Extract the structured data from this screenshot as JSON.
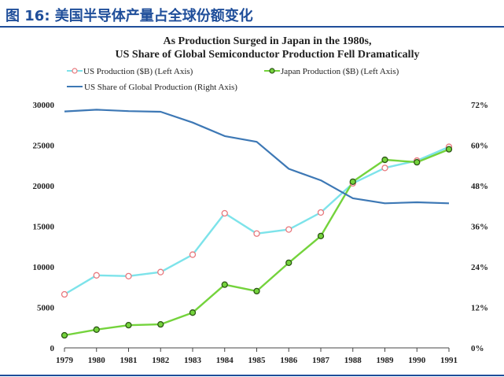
{
  "figure": {
    "title": "图 16:  美国半导体产量占全球份额变化"
  },
  "chart_data": {
    "type": "line",
    "title": "As Production Surged in Japan in the 1980s,",
    "subtitle": "US Share of Global Semiconductor Production Fell Dramatically",
    "x": [
      "1979",
      "1980",
      "1981",
      "1982",
      "1983",
      "1984",
      "1985",
      "1986",
      "1987",
      "1988",
      "1989",
      "1990",
      "1991"
    ],
    "left_axis": {
      "ylim": [
        0,
        30000
      ],
      "ticks": [
        "0",
        "5000",
        "10000",
        "15000",
        "20000",
        "25000",
        "30000"
      ]
    },
    "right_axis": {
      "ylim": [
        0,
        72
      ],
      "ticks": [
        "0%",
        "12%",
        "24%",
        "36%",
        "48%",
        "60%",
        "72%"
      ]
    },
    "legend_placement": "top-left",
    "grid": false,
    "series": [
      {
        "name": "US Production ($B) (Left Axis)",
        "axis": "left",
        "color": "#7de3ea",
        "marker_color": "#e8787d",
        "values": [
          6600,
          8950,
          8850,
          9350,
          11500,
          16600,
          14100,
          14600,
          16700,
          20300,
          22200,
          23100,
          24800
        ]
      },
      {
        "name": "Japan Production ($B) (Left Axis)",
        "axis": "left",
        "color": "#74d33c",
        "marker_color": "#2b5514",
        "values": [
          1550,
          2250,
          2800,
          2900,
          4350,
          7800,
          7000,
          10500,
          13800,
          20500,
          23200,
          22900,
          24500
        ]
      },
      {
        "name": "US Share of Global Production (Right Axis)",
        "axis": "right",
        "color": "#3d78b5",
        "values": [
          70,
          70.5,
          70.1,
          69.9,
          66.7,
          62.7,
          61,
          53,
          49.6,
          44.3,
          42.8,
          43.1,
          42.8
        ]
      }
    ]
  }
}
